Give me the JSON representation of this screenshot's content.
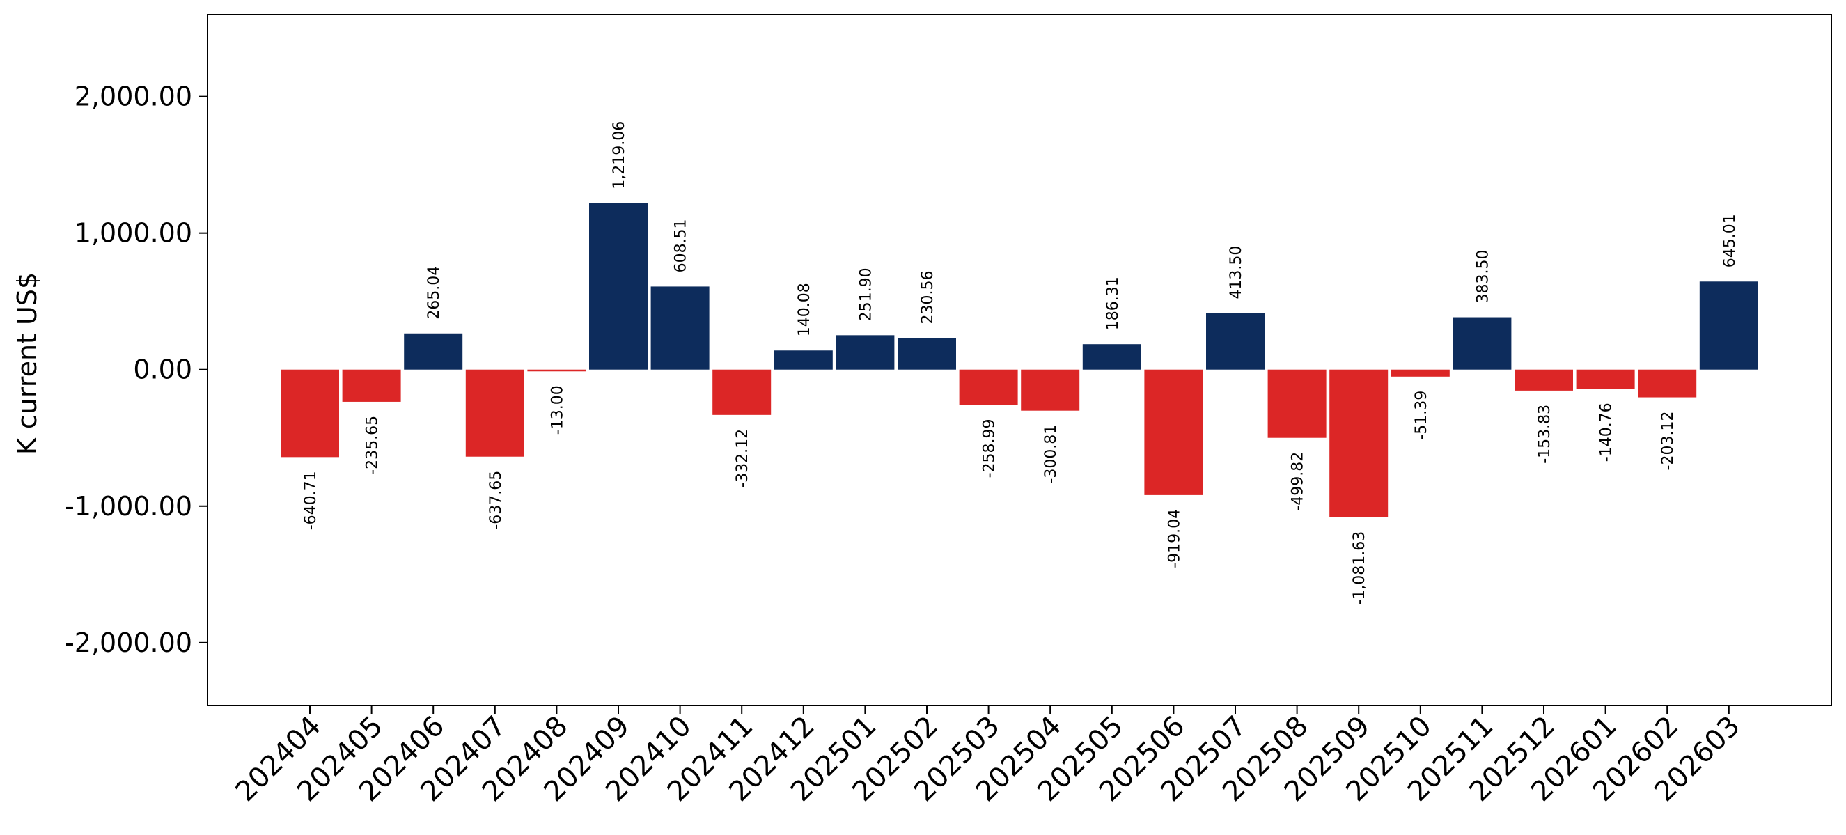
{
  "chart_data": {
    "type": "bar",
    "ylabel": "K current US$",
    "ylim": [
      -2460,
      2600
    ],
    "yticks": [
      -2000,
      -1000,
      0,
      1000,
      2000
    ],
    "ytick_labels": [
      "-2,000.00",
      "-1,000.00",
      "0.00",
      "1,000.00",
      "2,000.00"
    ],
    "grid": false,
    "categories": [
      "202404",
      "202405",
      "202406",
      "202407",
      "202408",
      "202409",
      "202410",
      "202411",
      "202412",
      "202501",
      "202502",
      "202503",
      "202504",
      "202505",
      "202506",
      "202507",
      "202508",
      "202509",
      "202510",
      "202511",
      "202512",
      "202601",
      "202602",
      "202603"
    ],
    "values": [
      -640.71,
      -235.65,
      265.04,
      -637.65,
      -13.0,
      1219.06,
      608.51,
      -332.12,
      140.08,
      251.9,
      230.56,
      -258.99,
      -300.81,
      186.31,
      -919.04,
      413.5,
      -499.82,
      -1081.63,
      -51.39,
      383.5,
      -153.83,
      -140.76,
      -203.12,
      645.01
    ],
    "value_labels": [
      "-640.71",
      "-235.65",
      "265.04",
      "-637.65",
      "-13.00",
      "1,219.06",
      "608.51",
      "-332.12",
      "140.08",
      "251.90",
      "230.56",
      "-258.99",
      "-300.81",
      "186.31",
      "-919.04",
      "413.50",
      "-499.82",
      "-1,081.63",
      "-51.39",
      "383.50",
      "-153.83",
      "-140.76",
      "-203.12",
      "645.01"
    ],
    "colors": {
      "positive": "#0d2c5c",
      "negative": "#dc2626"
    }
  }
}
